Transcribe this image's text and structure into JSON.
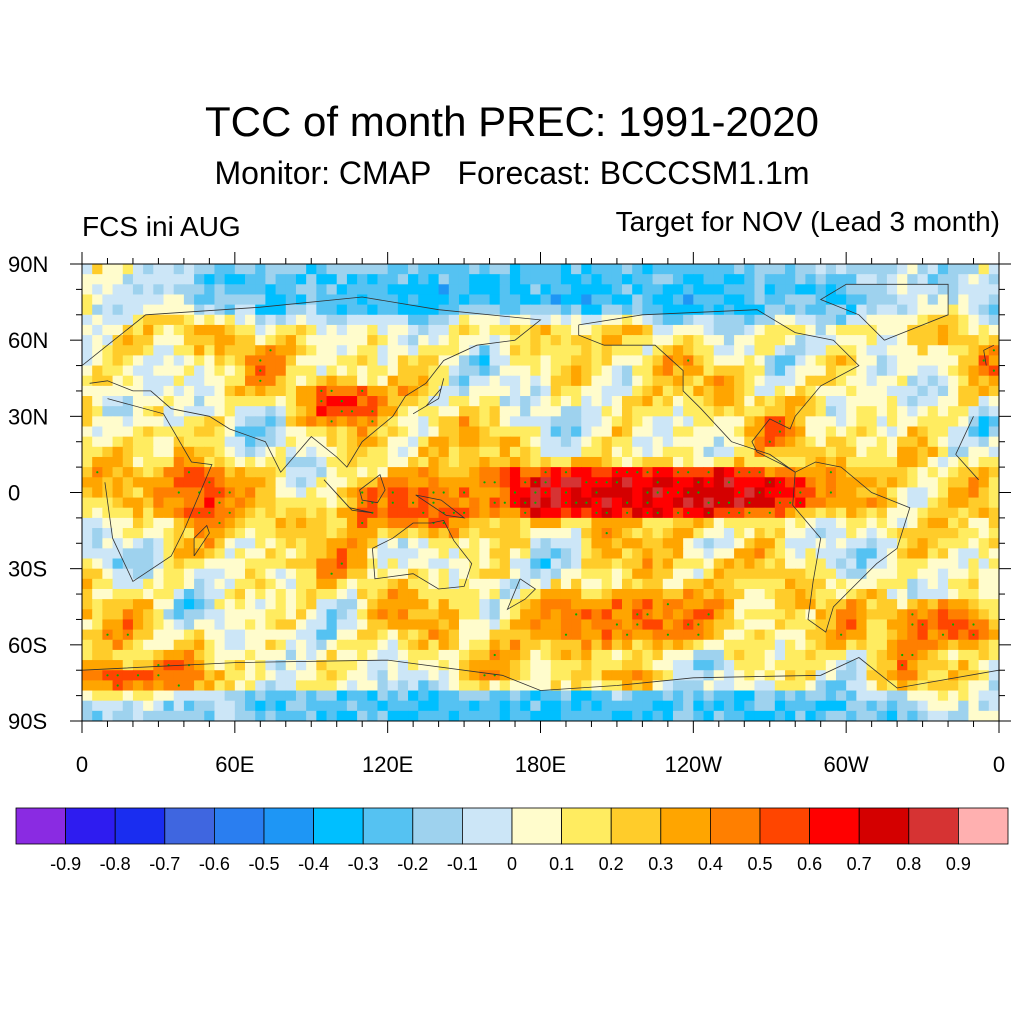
{
  "title": "TCC of month PREC: 1991-2020",
  "subtitle": "Monitor: CMAP   Forecast: BCCCSM1.1m",
  "left_label": "FCS ini AUG",
  "right_label": "Target for NOV (Lead 3 month)",
  "lat_ticks": [
    "90N",
    "60N",
    "30N",
    "0",
    "30S",
    "60S",
    "90S"
  ],
  "lon_ticks": [
    "0",
    "60E",
    "120E",
    "180E",
    "120W",
    "60W",
    "0"
  ],
  "colorbar": {
    "colors": [
      "#8a2be2",
      "#2e1cf0",
      "#1a2df0",
      "#3f66e0",
      "#2a7ef0",
      "#1e96f5",
      "#00bfff",
      "#55c2f2",
      "#9ed2ee",
      "#cce6f7",
      "#fffccc",
      "#ffec60",
      "#ffcc2a",
      "#ffa500",
      "#ff7f00",
      "#ff4500",
      "#ff0000",
      "#d40000",
      "#d63333",
      "#ffb0b0"
    ],
    "labels": [
      "-0.9",
      "-0.8",
      "-0.7",
      "-0.6",
      "-0.5",
      "-0.4",
      "-0.3",
      "-0.2",
      "-0.1",
      "0",
      "0.1",
      "0.2",
      "0.3",
      "0.4",
      "0.5",
      "0.6",
      "0.7",
      "0.8",
      "0.9"
    ]
  },
  "chart_data": {
    "type": "heatmap",
    "variable": "TCC of month PREC",
    "period": "1991-2020",
    "lon_range": [
      0,
      360
    ],
    "lat_range": [
      -90,
      90
    ],
    "value_range": [
      -1,
      1
    ],
    "stippling_color": "#00b000",
    "features": [
      {
        "name": "equatorial-pacific-max",
        "lon_range": [
          170,
          280
        ],
        "lat_range": [
          -5,
          5
        ],
        "value": 0.9
      },
      {
        "name": "equatorial-pacific-band",
        "lon_range": [
          160,
          285
        ],
        "lat_range": [
          -8,
          8
        ],
        "value": 0.75
      },
      {
        "name": "maritime-continent",
        "lon_range": [
          100,
          160
        ],
        "lat_range": [
          -15,
          5
        ],
        "value": 0.5
      },
      {
        "name": "indian-ocean-west",
        "lon_range": [
          35,
          60
        ],
        "lat_range": [
          -10,
          10
        ],
        "value": 0.5
      },
      {
        "name": "asia-north-pacific",
        "lon_range": [
          90,
          115
        ],
        "lat_range": [
          30,
          40
        ],
        "value": 0.55
      },
      {
        "name": "southern-ocean-pacific",
        "lon_range": [
          180,
          250
        ],
        "lat_range": [
          -60,
          -40
        ],
        "value": 0.45
      },
      {
        "name": "antarctic-atlantic",
        "lon_range": [
          0,
          45
        ],
        "lat_range": [
          -80,
          -70
        ],
        "value": 0.5
      },
      {
        "name": "south-atlantic",
        "lon_range": [
          320,
          355
        ],
        "lat_range": [
          -60,
          -45
        ],
        "value": 0.5
      },
      {
        "name": "arctic",
        "lon_range": [
          0,
          360
        ],
        "lat_range": [
          70,
          90
        ],
        "value": -0.3
      },
      {
        "name": "antarctic",
        "lon_range": [
          0,
          360
        ],
        "lat_range": [
          -90,
          -80
        ],
        "value": -0.3
      }
    ]
  }
}
